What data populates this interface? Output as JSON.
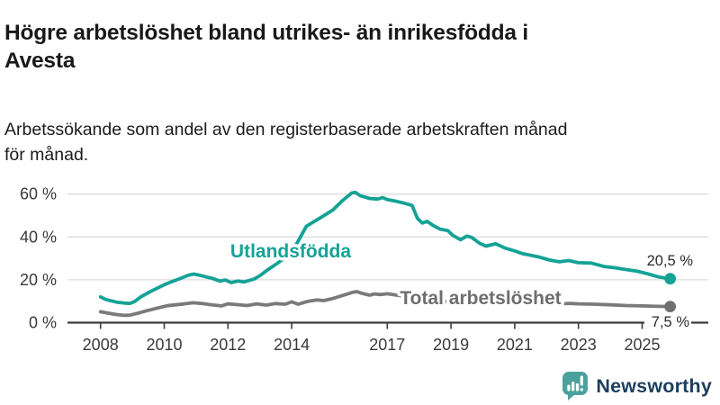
{
  "title_lines": [
    "Högre arbetslöshet bland utrikes- än inrikesfödda i",
    "Avesta"
  ],
  "subtitle_lines": [
    "Arbetssökande som andel av den registerbaserade arbetskraften månad",
    "för månad."
  ],
  "branding": {
    "logo_text": "Newsworthy",
    "logo_teal": "#4ba29c",
    "logo_navy": "#1d3e5e"
  },
  "chart_data": {
    "type": "line",
    "unit": "%",
    "x_tick_values": [
      2008,
      2010,
      2012,
      2014,
      2017,
      2019,
      2021,
      2023,
      2025
    ],
    "x_tick_labels": [
      "2008",
      "2010",
      "2012",
      "2014",
      "2017",
      "2019",
      "2021",
      "2023",
      "2025"
    ],
    "y_tick_values": [
      0,
      20,
      40,
      60
    ],
    "y_tick_labels": [
      "0 %",
      "20 %",
      "40 %",
      "60 %"
    ],
    "xlim": [
      2007.0,
      2026.1
    ],
    "ylim": [
      0,
      63
    ],
    "grid": "horizontal",
    "legend_position": "inline-labels",
    "colors": {
      "grid": "#dcdcdc",
      "axis": "#3c3c3c",
      "tick_text": "#3a3a3a",
      "value_label": "#2b2b2b"
    },
    "series": [
      {
        "name": "Utlandsfödda",
        "color": "#15a296",
        "end_value": 20.5,
        "end_label": "20,5 %",
        "points": [
          [
            2008.0,
            12.0
          ],
          [
            2008.17,
            10.8
          ],
          [
            2008.33,
            10.2
          ],
          [
            2008.5,
            9.6
          ],
          [
            2008.75,
            9.1
          ],
          [
            2008.92,
            9.0
          ],
          [
            2009.08,
            9.9
          ],
          [
            2009.25,
            11.9
          ],
          [
            2009.5,
            14.0
          ],
          [
            2009.75,
            15.9
          ],
          [
            2010.0,
            17.7
          ],
          [
            2010.25,
            19.2
          ],
          [
            2010.5,
            20.6
          ],
          [
            2010.75,
            22.1
          ],
          [
            2010.92,
            22.7
          ],
          [
            2011.1,
            22.2
          ],
          [
            2011.3,
            21.4
          ],
          [
            2011.5,
            20.7
          ],
          [
            2011.75,
            19.4
          ],
          [
            2011.92,
            19.9
          ],
          [
            2012.1,
            18.7
          ],
          [
            2012.3,
            19.4
          ],
          [
            2012.5,
            19.0
          ],
          [
            2012.67,
            19.7
          ],
          [
            2012.83,
            20.4
          ],
          [
            2013.0,
            21.9
          ],
          [
            2013.25,
            24.7
          ],
          [
            2013.55,
            27.7
          ],
          [
            2013.75,
            30.0
          ],
          [
            2014.0,
            33.0
          ],
          [
            2014.2,
            38.0
          ],
          [
            2014.46,
            45.0
          ],
          [
            2014.7,
            47.2
          ],
          [
            2014.93,
            49.2
          ],
          [
            2015.1,
            50.8
          ],
          [
            2015.3,
            52.7
          ],
          [
            2015.6,
            57.0
          ],
          [
            2015.88,
            60.5
          ],
          [
            2016.0,
            60.8
          ],
          [
            2016.15,
            59.3
          ],
          [
            2016.45,
            58.0
          ],
          [
            2016.7,
            57.7
          ],
          [
            2016.85,
            58.4
          ],
          [
            2017.0,
            57.5
          ],
          [
            2017.3,
            56.6
          ],
          [
            2017.55,
            55.7
          ],
          [
            2017.78,
            54.7
          ],
          [
            2017.95,
            48.6
          ],
          [
            2018.1,
            46.5
          ],
          [
            2018.25,
            47.3
          ],
          [
            2018.45,
            45.3
          ],
          [
            2018.65,
            43.7
          ],
          [
            2018.9,
            43.0
          ],
          [
            2019.05,
            40.8
          ],
          [
            2019.3,
            38.7
          ],
          [
            2019.5,
            40.4
          ],
          [
            2019.65,
            39.8
          ],
          [
            2019.9,
            37.0
          ],
          [
            2020.1,
            35.7
          ],
          [
            2020.4,
            36.8
          ],
          [
            2020.7,
            34.8
          ],
          [
            2021.0,
            33.5
          ],
          [
            2021.25,
            32.2
          ],
          [
            2021.55,
            31.3
          ],
          [
            2021.8,
            30.5
          ],
          [
            2022.1,
            29.2
          ],
          [
            2022.4,
            28.4
          ],
          [
            2022.7,
            29.0
          ],
          [
            2023.0,
            28.0
          ],
          [
            2023.4,
            27.8
          ],
          [
            2023.8,
            26.2
          ],
          [
            2024.1,
            25.7
          ],
          [
            2024.4,
            25.0
          ],
          [
            2024.85,
            24.0
          ],
          [
            2025.2,
            22.7
          ],
          [
            2025.5,
            21.4
          ],
          [
            2025.7,
            20.9
          ],
          [
            2025.88,
            20.5
          ]
        ]
      },
      {
        "name": "Total arbetslöshet",
        "color": "#7a7a7a",
        "end_value": 7.5,
        "end_label": "7,5 %",
        "points": [
          [
            2008.0,
            5.1
          ],
          [
            2008.25,
            4.4
          ],
          [
            2008.5,
            3.8
          ],
          [
            2008.75,
            3.4
          ],
          [
            2008.92,
            3.5
          ],
          [
            2009.17,
            4.4
          ],
          [
            2009.42,
            5.4
          ],
          [
            2009.67,
            6.4
          ],
          [
            2009.92,
            7.3
          ],
          [
            2010.1,
            7.9
          ],
          [
            2010.35,
            8.3
          ],
          [
            2010.6,
            8.7
          ],
          [
            2010.9,
            9.3
          ],
          [
            2011.2,
            8.9
          ],
          [
            2011.5,
            8.3
          ],
          [
            2011.8,
            7.8
          ],
          [
            2012.0,
            8.8
          ],
          [
            2012.3,
            8.4
          ],
          [
            2012.6,
            8.0
          ],
          [
            2012.9,
            8.8
          ],
          [
            2013.2,
            8.2
          ],
          [
            2013.5,
            8.9
          ],
          [
            2013.8,
            8.6
          ],
          [
            2014.0,
            9.7
          ],
          [
            2014.2,
            8.6
          ],
          [
            2014.5,
            9.9
          ],
          [
            2014.8,
            10.6
          ],
          [
            2015.0,
            10.3
          ],
          [
            2015.3,
            11.3
          ],
          [
            2015.6,
            12.7
          ],
          [
            2015.9,
            14.1
          ],
          [
            2016.05,
            14.5
          ],
          [
            2016.2,
            13.7
          ],
          [
            2016.45,
            12.8
          ],
          [
            2016.6,
            13.4
          ],
          [
            2016.8,
            13.1
          ],
          [
            2017.0,
            13.5
          ],
          [
            2017.5,
            12.4
          ],
          [
            2018.0,
            11.2
          ],
          [
            2018.5,
            10.3
          ],
          [
            2019.0,
            9.7
          ],
          [
            2019.5,
            9.3
          ],
          [
            2020.0,
            9.9
          ],
          [
            2020.5,
            10.4
          ],
          [
            2021.0,
            9.9
          ],
          [
            2021.5,
            9.4
          ],
          [
            2022.0,
            9.0
          ],
          [
            2022.4,
            8.8
          ],
          [
            2022.75,
            9.0
          ],
          [
            2023.0,
            8.8
          ],
          [
            2023.5,
            8.6
          ],
          [
            2024.0,
            8.3
          ],
          [
            2024.5,
            8.0
          ],
          [
            2025.0,
            7.8
          ],
          [
            2025.5,
            7.6
          ],
          [
            2025.88,
            7.5
          ]
        ]
      }
    ]
  }
}
